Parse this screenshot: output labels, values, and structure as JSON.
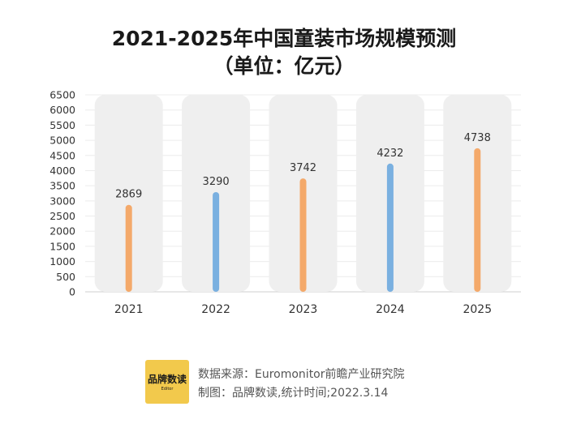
{
  "header": {
    "title": "2021-2025年中国童装市场规模预测",
    "subtitle": "（单位：亿元）"
  },
  "chart_data": {
    "type": "bar",
    "title": "2021-2025年中国童装市场规模预测",
    "subtitle": "（单位：亿元）",
    "categories": [
      "2021",
      "2022",
      "2023",
      "2024",
      "2025"
    ],
    "values": [
      2869,
      3290,
      3742,
      4232,
      4738
    ],
    "data_labels": [
      "2869",
      "3290",
      "3742",
      "4232",
      "4738"
    ],
    "bar_colors": [
      "#f4a96a",
      "#7ab0e0",
      "#f4a96a",
      "#7ab0e0",
      "#f4a96a"
    ],
    "background_panel_color": "#efefef",
    "y_ticks": [
      0,
      500,
      1000,
      1500,
      2000,
      2500,
      3000,
      3500,
      4000,
      4500,
      5000,
      5500,
      6000,
      6500
    ],
    "ylim": [
      0,
      6500
    ],
    "xlabel": "",
    "ylabel": "",
    "grid": true,
    "legend": "none"
  },
  "footer": {
    "logo_text": "品牌数读",
    "logo_subtext": "Editor",
    "source_line": "数据来源：Euromonitor前瞻产业研究院",
    "credit_line": "制图：品牌数读,统计时间;2022.3.14"
  }
}
